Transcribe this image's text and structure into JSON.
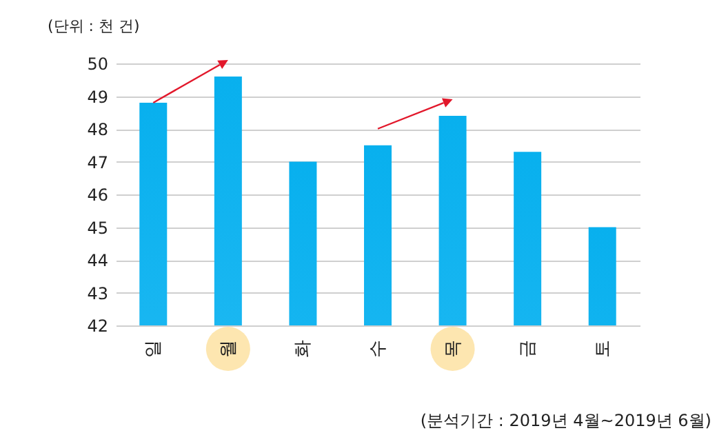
{
  "chart_data": {
    "type": "bar",
    "ylabel": "(단위 : 천 건)",
    "categories": [
      "일",
      "월",
      "화",
      "수",
      "목",
      "금",
      "토"
    ],
    "values": [
      48.8,
      49.6,
      47.0,
      47.5,
      48.4,
      47.3,
      45.0
    ],
    "color": "#08b0ee",
    "ylim": [
      42,
      50
    ],
    "yticks": [
      42,
      43,
      44,
      45,
      46,
      47,
      48,
      49,
      50
    ],
    "grid": "y",
    "annotations": [
      "(분석기간 : 2019년 4월~2019년 6월)"
    ]
  }
}
